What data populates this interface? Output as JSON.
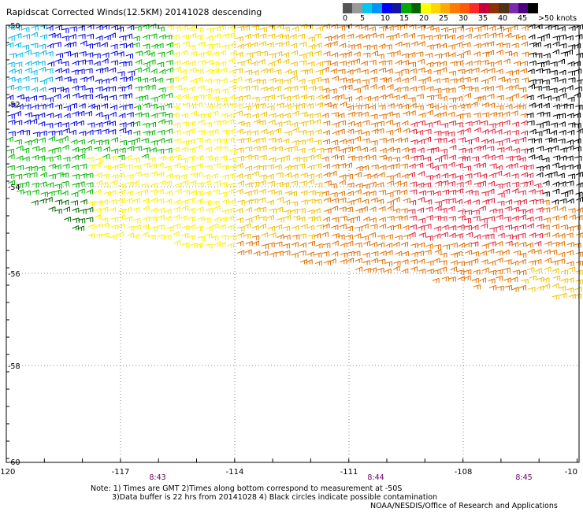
{
  "title": "Rapidscat Corrected Winds(12.5KM) 20141028 descending",
  "legend": {
    "units_label": ">50 knots",
    "labels": [
      "0",
      "5",
      "10",
      "15",
      "20",
      "25",
      "30",
      "35",
      "40",
      "45"
    ],
    "colors": [
      "#555555",
      "#999999",
      "#00c8f0",
      "#0096ff",
      "#0000ff",
      "#1414a0",
      "#00aa00",
      "#006400",
      "#ffff00",
      "#ffd700",
      "#ffaa00",
      "#ff7a00",
      "#ff5a00",
      "#ff2828",
      "#c8003c",
      "#8c3200",
      "#503214",
      "#7a2aaa",
      "#4b0082",
      "#000000"
    ]
  },
  "axes": {
    "lon_labels": [
      "-120",
      "-117",
      "-114",
      "-111",
      "-108",
      "-10"
    ],
    "lat_labels": [
      "-50",
      "-52",
      "-54",
      "-56",
      "-58",
      "-60"
    ],
    "time_labels": [
      "8:43",
      "8:44",
      "8:45"
    ]
  },
  "wind_colors": {
    "light_blue": "#00b4e6",
    "blue": "#0000e0",
    "green": "#00b400",
    "dark_green": "#006400",
    "yellow": "#ffee00",
    "gold": "#f0c000",
    "orange": "#e07000",
    "red": "#e0203c",
    "black": "#000000"
  },
  "notes": {
    "line1": "Note: 1) Times are GMT 2)Times along bottom correspond to measurement at -50S",
    "line2": "3)Data buffer is 22 hrs from 20141028 4) Black circles indicate possible contamination"
  },
  "credit": "NOAA/NESDIS/Office of Research and Applications"
}
